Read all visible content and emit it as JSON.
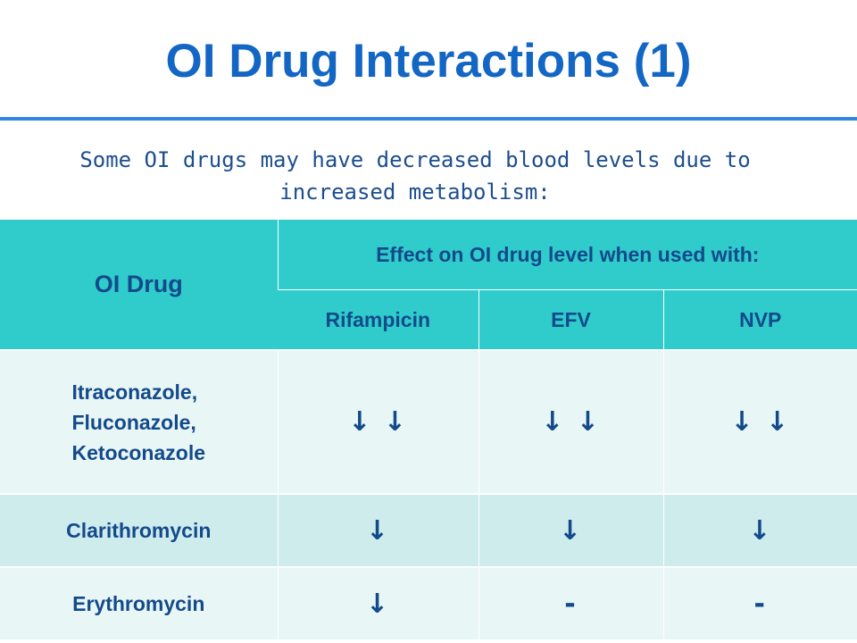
{
  "slide": {
    "title": "OI Drug Interactions (1)",
    "subtitle": "Some OI drugs may have decreased blood levels due to increased metabolism:"
  },
  "table": {
    "header_drug": "OI Drug",
    "header_effect": "Effect on OI drug level when used with:",
    "columns": [
      "Rifampicin",
      "EFV",
      "NVP"
    ],
    "rows": [
      {
        "drug_lines": [
          "Itraconazole,",
          "Fluconazole,",
          "Ketoconazole"
        ],
        "effects": [
          "↓ ↓",
          "↓ ↓",
          "↓ ↓"
        ]
      },
      {
        "drug": "Clarithromycin",
        "effects": [
          "↓",
          "↓",
          "↓"
        ]
      },
      {
        "drug": "Erythromycin",
        "effects": [
          "↓",
          "-",
          "-"
        ]
      }
    ]
  },
  "colors": {
    "title": "#1366c4",
    "rule": "#2f86e0",
    "header_bg": "#30cccc",
    "row_light": "#e9f6f6",
    "row_mid": "#cfeced",
    "text": "#134a8a"
  }
}
